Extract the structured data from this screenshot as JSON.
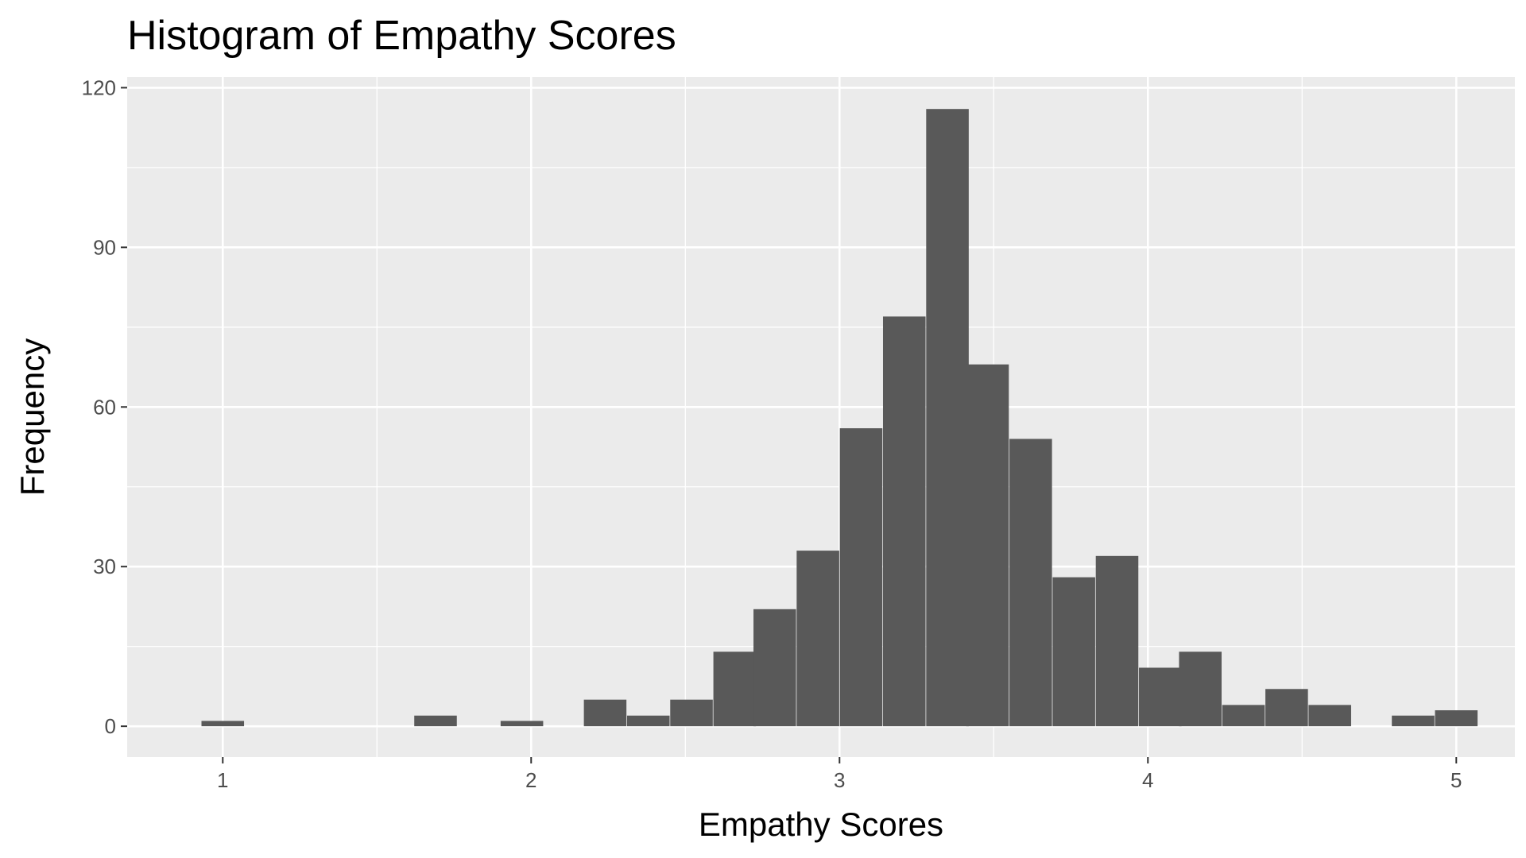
{
  "colors": {
    "panel_background": "#ebebeb",
    "grid_major": "#ffffff",
    "grid_minor": "#f5f5f5",
    "bar_fill": "#595959",
    "tick_color": "#333333",
    "tick_label": "#4d4d4d"
  },
  "chart_data": {
    "type": "bar",
    "subtype": "histogram",
    "title": "Histogram of Empathy Scores",
    "xlabel": "Empathy Scores",
    "ylabel": "Frequency",
    "xlim": [
      0.69,
      5.19
    ],
    "ylim": [
      -5.8,
      122
    ],
    "x_ticks": [
      1,
      2,
      3,
      4,
      5
    ],
    "x_tick_labels": [
      "1",
      "2",
      "3",
      "4",
      "5"
    ],
    "x_minor_gridlines": [
      1.5,
      2.5,
      3.5,
      4.5
    ],
    "y_ticks": [
      0,
      30,
      60,
      90,
      120
    ],
    "y_tick_labels": [
      "0",
      "30",
      "60",
      "90",
      "120"
    ],
    "y_minor_gridlines": [
      15,
      45,
      75,
      105
    ],
    "grid": true,
    "legend": "none",
    "bin_width": 0.138,
    "bin_centers": [
      1.0,
      1.69,
      1.97,
      2.24,
      2.38,
      2.52,
      2.66,
      2.79,
      2.93,
      3.07,
      3.21,
      3.35,
      3.48,
      3.62,
      3.76,
      3.9,
      4.04,
      4.17,
      4.31,
      4.45,
      4.59,
      4.86,
      5.0
    ],
    "values": [
      1,
      2,
      1,
      5,
      2,
      5,
      14,
      22,
      33,
      56,
      77,
      116,
      68,
      54,
      28,
      32,
      11,
      14,
      4,
      7,
      4,
      2,
      3
    ]
  }
}
